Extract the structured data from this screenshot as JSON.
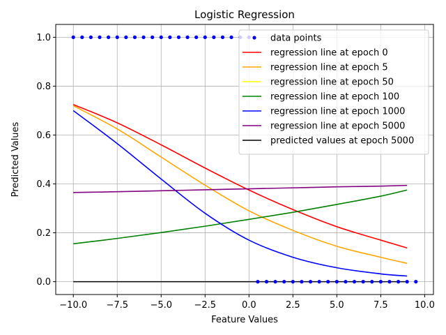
{
  "chart_data": {
    "type": "line",
    "title": "Logistic Regression",
    "xlabel": "Feature Values",
    "ylabel": "Predicted Values",
    "xlim": [
      -11,
      10.5
    ],
    "ylim": [
      -0.0525,
      1.0525
    ],
    "grid": true,
    "legend_position": "top-right",
    "x_ticks": [
      -10.0,
      -7.5,
      -5.0,
      -2.5,
      0.0,
      2.5,
      5.0,
      7.5,
      10.0
    ],
    "x_tick_labels": [
      "−10.0",
      "−7.5",
      "−5.0",
      "−2.5",
      "0.0",
      "2.5",
      "5.0",
      "7.5",
      "10.0"
    ],
    "y_ticks": [
      0.0,
      0.2,
      0.4,
      0.6,
      0.8,
      1.0
    ],
    "y_tick_labels": [
      "0.0",
      "0.2",
      "0.4",
      "0.6",
      "0.8",
      "1.0"
    ],
    "scatter": {
      "name": "data points",
      "color": "#0000ff",
      "points_class1_x": [
        -10.0,
        -9.5,
        -9.0,
        -8.5,
        -8.0,
        -7.5,
        -7.0,
        -6.5,
        -6.0,
        -5.5,
        -5.0,
        -4.5,
        -4.0,
        -3.5,
        -3.0,
        -2.5,
        -2.0,
        -1.5,
        -1.0,
        -0.5,
        0.0
      ],
      "points_class1_y": 1.0,
      "points_class0_x": [
        0.5,
        1.0,
        1.5,
        2.0,
        2.5,
        3.0,
        3.5,
        4.0,
        4.5,
        5.0,
        5.5,
        6.0,
        6.5,
        7.0,
        7.5,
        8.0,
        8.5,
        9.0,
        9.5
      ],
      "points_class0_y": 0.0
    },
    "series": [
      {
        "name": "regression line at epoch 0",
        "color": "#ff0000",
        "x": [
          -10,
          -7.5,
          -5,
          -2.5,
          0,
          2.5,
          5,
          7.5,
          9
        ],
        "y": [
          0.725,
          0.65,
          0.56,
          0.465,
          0.375,
          0.295,
          0.225,
          0.17,
          0.138
        ]
      },
      {
        "name": "regression line at epoch 5",
        "color": "#ffa500",
        "x": [
          -10,
          -7.5,
          -5,
          -2.5,
          0,
          2.5,
          5,
          7.5,
          9
        ],
        "y": [
          0.72,
          0.625,
          0.51,
          0.395,
          0.29,
          0.21,
          0.145,
          0.1,
          0.075
        ]
      },
      {
        "name": "regression line at epoch 50",
        "color": "#ffff00",
        "x": [],
        "y": []
      },
      {
        "name": "regression line at epoch 100",
        "color": "#008000",
        "x": [
          -10,
          -7.5,
          -5,
          -2.5,
          0,
          2.5,
          5,
          7.5,
          9
        ],
        "y": [
          0.155,
          0.177,
          0.201,
          0.227,
          0.255,
          0.284,
          0.316,
          0.35,
          0.375
        ]
      },
      {
        "name": "regression line at epoch 1000",
        "color": "#0000ff",
        "x": [
          -10,
          -7.5,
          -5,
          -2.5,
          0,
          2.5,
          5,
          7.5,
          9
        ],
        "y": [
          0.7,
          0.565,
          0.42,
          0.28,
          0.17,
          0.1,
          0.057,
          0.032,
          0.023
        ]
      },
      {
        "name": "regression line at epoch 5000",
        "color": "#800080",
        "x": [
          -10,
          -7.5,
          -5,
          -2.5,
          0,
          2.5,
          5,
          7.5,
          9
        ],
        "y": [
          0.365,
          0.368,
          0.372,
          0.376,
          0.38,
          0.384,
          0.388,
          0.391,
          0.394
        ]
      },
      {
        "name": "predicted values at epoch 5000",
        "color": "#000000",
        "x": [
          -10,
          9
        ],
        "y": [
          0.0,
          0.0
        ]
      }
    ]
  }
}
